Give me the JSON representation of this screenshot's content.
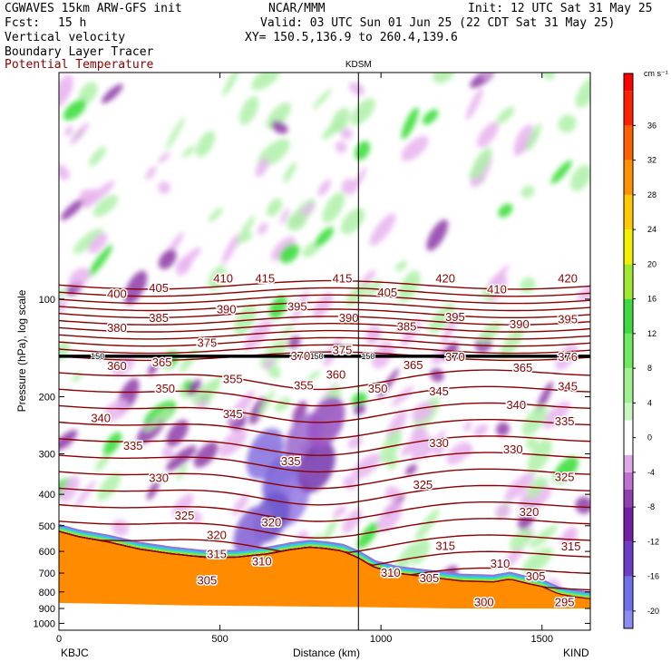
{
  "header": {
    "model": "CGWAVES 15km ARW-GFS init",
    "org": "NCAR/MMM",
    "init": "Init: 12 UTC Sat 31 May 25",
    "fcst_label": "Fcst:",
    "fcst_value": "15 h",
    "valid": "Valid: 03 UTC Sun 01 Jun 25 (22 CDT Sat 31 May 25)",
    "field1": "Vertical velocity",
    "field2": "Boundary Layer Tracer",
    "field3": "Potential Temperature",
    "xy": "XY= 150.5,136.9 to 260.4,139.6",
    "station_mid": "KDSM"
  },
  "colors": {
    "theta_line": "#8b0000",
    "terrain": "#ff8c00",
    "field3_text": "#8b0000"
  },
  "chart_data": {
    "type": "heatmap",
    "xlabel": "Distance (km)",
    "ylabel": "Pressure (hPa), log scale",
    "xlim": [
      0,
      1650
    ],
    "ylim": [
      1050,
      20
    ],
    "x_ticks": [
      "0",
      "500",
      "1000",
      "1500"
    ],
    "x_tick_values": [
      0,
      500,
      1000,
      1500
    ],
    "y_ticks": [
      "100",
      "200",
      "300",
      "400",
      "500",
      "600",
      "700",
      "800",
      "900",
      "1000"
    ],
    "y_tick_values": [
      100,
      200,
      300,
      400,
      500,
      600,
      700,
      800,
      900,
      1000
    ],
    "endpoint_left": "KBJC",
    "endpoint_right": "KIND",
    "marker_x_km": 930,
    "marker_label": "KDSM",
    "tropopause_level_hPa": 150,
    "tropopause_labels": [
      "150",
      "150",
      "150"
    ],
    "theta_labels": [
      {
        "t": "420",
        "x": 1200,
        "p": 86
      },
      {
        "t": "420",
        "x": 1580,
        "p": 86
      },
      {
        "t": "415",
        "x": 640,
        "p": 86
      },
      {
        "t": "415",
        "x": 880,
        "p": 86
      },
      {
        "t": "410",
        "x": 510,
        "p": 86
      },
      {
        "t": "410",
        "x": 1360,
        "p": 93
      },
      {
        "t": "405",
        "x": 310,
        "p": 92
      },
      {
        "t": "405",
        "x": 1020,
        "p": 95
      },
      {
        "t": "400",
        "x": 180,
        "p": 96
      },
      {
        "t": "395",
        "x": 740,
        "p": 105
      },
      {
        "t": "395",
        "x": 1230,
        "p": 113
      },
      {
        "t": "395",
        "x": 1580,
        "p": 115
      },
      {
        "t": "390",
        "x": 520,
        "p": 107
      },
      {
        "t": "390",
        "x": 900,
        "p": 114
      },
      {
        "t": "390",
        "x": 1430,
        "p": 119
      },
      {
        "t": "385",
        "x": 310,
        "p": 114
      },
      {
        "t": "385",
        "x": 1080,
        "p": 121
      },
      {
        "t": "380",
        "x": 180,
        "p": 122
      },
      {
        "t": "375",
        "x": 460,
        "p": 136
      },
      {
        "t": "375",
        "x": 880,
        "p": 143
      },
      {
        "t": "376",
        "x": 1580,
        "p": 150
      },
      {
        "t": "370",
        "x": 750,
        "p": 149
      },
      {
        "t": "370",
        "x": 1230,
        "p": 150
      },
      {
        "t": "365",
        "x": 320,
        "p": 156
      },
      {
        "t": "365",
        "x": 1100,
        "p": 159
      },
      {
        "t": "365",
        "x": 1440,
        "p": 162
      },
      {
        "t": "360",
        "x": 180,
        "p": 160
      },
      {
        "t": "360",
        "x": 860,
        "p": 170
      },
      {
        "t": "355",
        "x": 540,
        "p": 176
      },
      {
        "t": "355",
        "x": 760,
        "p": 184
      },
      {
        "t": "350",
        "x": 330,
        "p": 188
      },
      {
        "t": "350",
        "x": 990,
        "p": 188
      },
      {
        "t": "345",
        "x": 1180,
        "p": 192
      },
      {
        "t": "345",
        "x": 1580,
        "p": 185
      },
      {
        "t": "345",
        "x": 540,
        "p": 225
      },
      {
        "t": "340",
        "x": 130,
        "p": 232
      },
      {
        "t": "340",
        "x": 1420,
        "p": 211
      },
      {
        "t": "335",
        "x": 1570,
        "p": 237
      },
      {
        "t": "335",
        "x": 230,
        "p": 282
      },
      {
        "t": "335",
        "x": 720,
        "p": 315
      },
      {
        "t": "330",
        "x": 1180,
        "p": 277
      },
      {
        "t": "330",
        "x": 1410,
        "p": 290
      },
      {
        "t": "330",
        "x": 310,
        "p": 355
      },
      {
        "t": "325",
        "x": 1130,
        "p": 372
      },
      {
        "t": "325",
        "x": 1570,
        "p": 352
      },
      {
        "t": "325",
        "x": 390,
        "p": 463
      },
      {
        "t": "320",
        "x": 660,
        "p": 487
      },
      {
        "t": "320",
        "x": 1460,
        "p": 452
      },
      {
        "t": "320",
        "x": 490,
        "p": 533
      },
      {
        "t": "315",
        "x": 1200,
        "p": 575
      },
      {
        "t": "315",
        "x": 1590,
        "p": 577
      },
      {
        "t": "315",
        "x": 490,
        "p": 610
      },
      {
        "t": "310",
        "x": 630,
        "p": 642
      },
      {
        "t": "310",
        "x": 1370,
        "p": 652
      },
      {
        "t": "310",
        "x": 1030,
        "p": 695
      },
      {
        "t": "305",
        "x": 1480,
        "p": 714
      },
      {
        "t": "305",
        "x": 1150,
        "p": 722
      },
      {
        "t": "305",
        "x": 460,
        "p": 734
      },
      {
        "t": "300",
        "x": 1320,
        "p": 857
      },
      {
        "t": "295",
        "x": 1570,
        "p": 858
      }
    ],
    "colorbar": {
      "unit": "cm s⁻¹",
      "tick_labels": [
        "36",
        "32",
        "28",
        "24",
        "20",
        "16",
        "12",
        "8",
        "4",
        "0",
        "-4",
        "-8",
        "-12",
        "-16",
        "-20"
      ],
      "tick_values": [
        36,
        32,
        28,
        24,
        20,
        16,
        12,
        8,
        4,
        0,
        -4,
        -8,
        -12,
        -16,
        -20
      ],
      "range": [
        -22,
        42
      ]
    }
  }
}
